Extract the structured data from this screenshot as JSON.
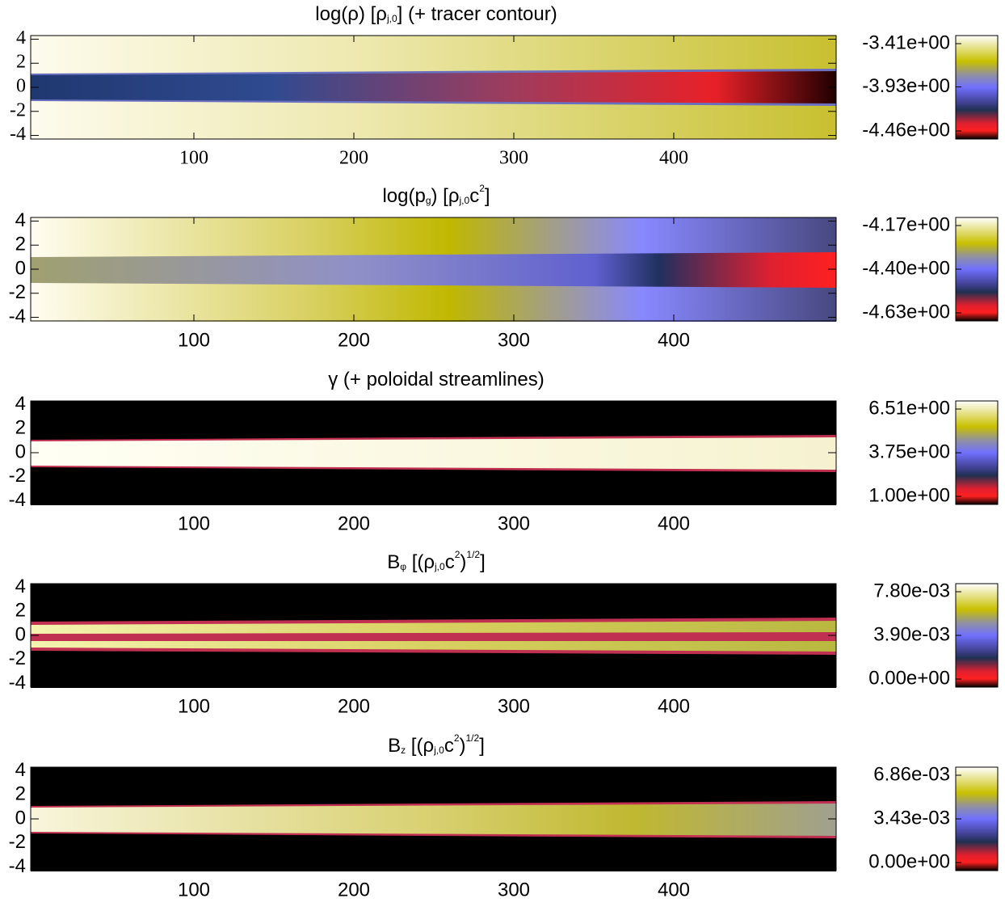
{
  "chart_data": [
    {
      "type": "heatmap",
      "title_parts": [
        "log(ρ) [ρ",
        "j,0",
        "] (+ tracer contour)"
      ],
      "xlim": [
        0,
        500
      ],
      "xticks": [
        100,
        200,
        300,
        400
      ],
      "ylim": [
        -4.3,
        4.3
      ],
      "yticks": [
        4,
        2,
        0,
        -2,
        -4
      ],
      "clim": [
        -4.46,
        -3.41
      ],
      "cticks": [
        {
          "value": -3.41,
          "label": "-3.41e+00"
        },
        {
          "value": -3.93,
          "label": "-3.93e+00"
        },
        {
          "value": -4.46,
          "label": "-4.46e+00"
        }
      ]
    },
    {
      "type": "heatmap",
      "title_parts": [
        "log(p",
        "g",
        ") [ρ",
        "j,0",
        "c",
        "2",
        "]"
      ],
      "xlim": [
        0,
        500
      ],
      "xticks": [
        100,
        200,
        300,
        400
      ],
      "ylim": [
        -4.3,
        4.3
      ],
      "yticks": [
        4,
        2,
        0,
        -2,
        -4
      ],
      "clim": [
        -4.63,
        -4.17
      ],
      "cticks": [
        {
          "value": -4.17,
          "label": "-4.17e+00"
        },
        {
          "value": -4.4,
          "label": "-4.40e+00"
        },
        {
          "value": -4.63,
          "label": "-4.63e+00"
        }
      ]
    },
    {
      "type": "heatmap",
      "title_parts": [
        "γ (+ poloidal streamlines)"
      ],
      "xlim": [
        0,
        500
      ],
      "xticks": [
        100,
        200,
        300,
        400
      ],
      "ylim": [
        -4.3,
        4.3
      ],
      "yticks": [
        4,
        2,
        0,
        -2,
        -4
      ],
      "clim": [
        1,
        6.51
      ],
      "cticks": [
        {
          "value": 6.51,
          "label": "6.51e+00"
        },
        {
          "value": 3.75,
          "label": "3.75e+00"
        },
        {
          "value": 1,
          "label": "1.00e+00"
        }
      ]
    },
    {
      "type": "heatmap",
      "title_parts": [
        "B",
        "φ",
        " [(ρ",
        "j,0",
        "c",
        "2",
        ")",
        "1/2",
        "]"
      ],
      "xlim": [
        0,
        500
      ],
      "xticks": [
        100,
        200,
        300,
        400
      ],
      "ylim": [
        -4.3,
        4.3
      ],
      "yticks": [
        4,
        2,
        0,
        -2,
        -4
      ],
      "clim": [
        0,
        0.0078
      ],
      "cticks": [
        {
          "value": 0.0078,
          "label": "7.80e-03"
        },
        {
          "value": 0.0039,
          "label": "3.90e-03"
        },
        {
          "value": 0,
          "label": "0.00e+00"
        }
      ]
    },
    {
      "type": "heatmap",
      "title_parts": [
        "B",
        "z",
        " [(ρ",
        "j,0",
        "c",
        "2",
        ")",
        "1/2",
        "]"
      ],
      "xlim": [
        0,
        500
      ],
      "xticks": [
        100,
        200,
        300,
        400
      ],
      "ylim": [
        -4.3,
        4.3
      ],
      "yticks": [
        4,
        2,
        0,
        -2,
        -4
      ],
      "clim": [
        0,
        0.00686
      ],
      "cticks": [
        {
          "value": 0.00686,
          "label": "6.86e-03"
        },
        {
          "value": 0.00343,
          "label": "3.43e-03"
        },
        {
          "value": 0,
          "label": "0.00e+00"
        }
      ]
    }
  ]
}
